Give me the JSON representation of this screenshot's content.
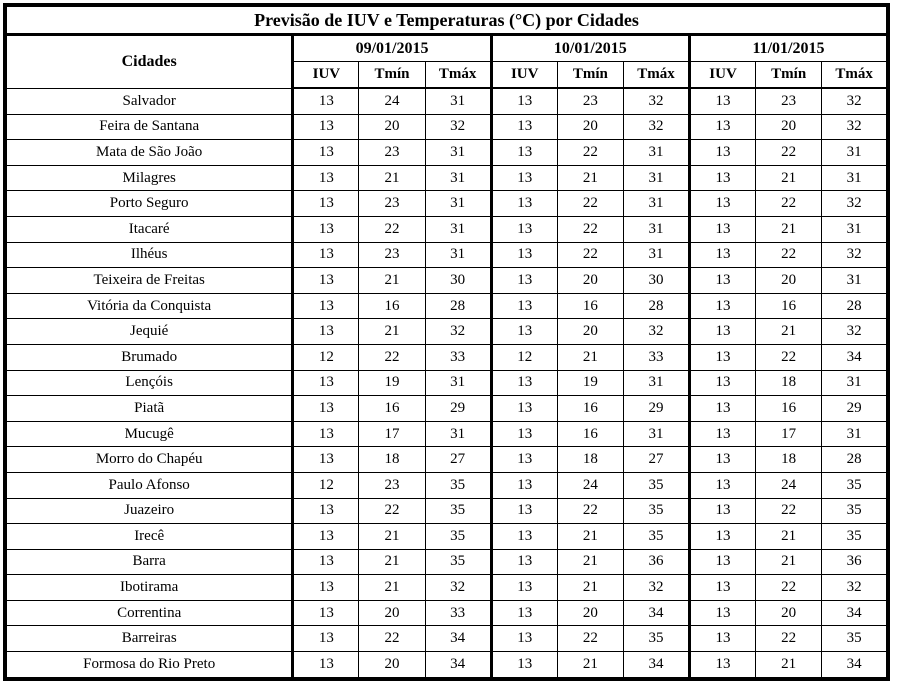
{
  "title": "Previsão de IUV e Temperaturas (°C) por Cidades",
  "table": {
    "city_header": "Cidades",
    "dates": [
      "09/01/2015",
      "10/01/2015",
      "11/01/2015"
    ],
    "sub_headers": [
      "IUV",
      "Tmín",
      "Tmáx"
    ],
    "rows": [
      {
        "city": "Salvador",
        "values": [
          13,
          24,
          31,
          13,
          23,
          32,
          13,
          23,
          32
        ]
      },
      {
        "city": "Feira de Santana",
        "values": [
          13,
          20,
          32,
          13,
          20,
          32,
          13,
          20,
          32
        ]
      },
      {
        "city": "Mata de São João",
        "values": [
          13,
          23,
          31,
          13,
          22,
          31,
          13,
          22,
          31
        ]
      },
      {
        "city": "Milagres",
        "values": [
          13,
          21,
          31,
          13,
          21,
          31,
          13,
          21,
          31
        ]
      },
      {
        "city": "Porto Seguro",
        "values": [
          13,
          23,
          31,
          13,
          22,
          31,
          13,
          22,
          32
        ]
      },
      {
        "city": "Itacaré",
        "values": [
          13,
          22,
          31,
          13,
          22,
          31,
          13,
          21,
          31
        ]
      },
      {
        "city": "Ilhéus",
        "values": [
          13,
          23,
          31,
          13,
          22,
          31,
          13,
          22,
          32
        ]
      },
      {
        "city": "Teixeira de Freitas",
        "values": [
          13,
          21,
          30,
          13,
          20,
          30,
          13,
          20,
          31
        ]
      },
      {
        "city": "Vitória da Conquista",
        "values": [
          13,
          16,
          28,
          13,
          16,
          28,
          13,
          16,
          28
        ]
      },
      {
        "city": "Jequié",
        "values": [
          13,
          21,
          32,
          13,
          20,
          32,
          13,
          21,
          32
        ]
      },
      {
        "city": "Brumado",
        "values": [
          12,
          22,
          33,
          12,
          21,
          33,
          13,
          22,
          34
        ]
      },
      {
        "city": "Lençóis",
        "values": [
          13,
          19,
          31,
          13,
          19,
          31,
          13,
          18,
          31
        ]
      },
      {
        "city": "Piatã",
        "values": [
          13,
          16,
          29,
          13,
          16,
          29,
          13,
          16,
          29
        ]
      },
      {
        "city": "Mucugê",
        "values": [
          13,
          17,
          31,
          13,
          16,
          31,
          13,
          17,
          31
        ]
      },
      {
        "city": "Morro do Chapéu",
        "values": [
          13,
          18,
          27,
          13,
          18,
          27,
          13,
          18,
          28
        ]
      },
      {
        "city": "Paulo Afonso",
        "values": [
          12,
          23,
          35,
          13,
          24,
          35,
          13,
          24,
          35
        ]
      },
      {
        "city": "Juazeiro",
        "values": [
          13,
          22,
          35,
          13,
          22,
          35,
          13,
          22,
          35
        ]
      },
      {
        "city": "Irecê",
        "values": [
          13,
          21,
          35,
          13,
          21,
          35,
          13,
          21,
          35
        ]
      },
      {
        "city": "Barra",
        "values": [
          13,
          21,
          35,
          13,
          21,
          36,
          13,
          21,
          36
        ]
      },
      {
        "city": "Ibotirama",
        "values": [
          13,
          21,
          32,
          13,
          21,
          32,
          13,
          22,
          32
        ]
      },
      {
        "city": "Correntina",
        "values": [
          13,
          20,
          33,
          13,
          20,
          34,
          13,
          20,
          34
        ]
      },
      {
        "city": "Barreiras",
        "values": [
          13,
          22,
          34,
          13,
          22,
          35,
          13,
          22,
          35
        ]
      },
      {
        "city": "Formosa do Rio Preto",
        "values": [
          13,
          20,
          34,
          13,
          21,
          34,
          13,
          21,
          34
        ]
      }
    ]
  },
  "colors": {
    "border": "#000000",
    "text": "#000000",
    "background": "#ffffff"
  }
}
